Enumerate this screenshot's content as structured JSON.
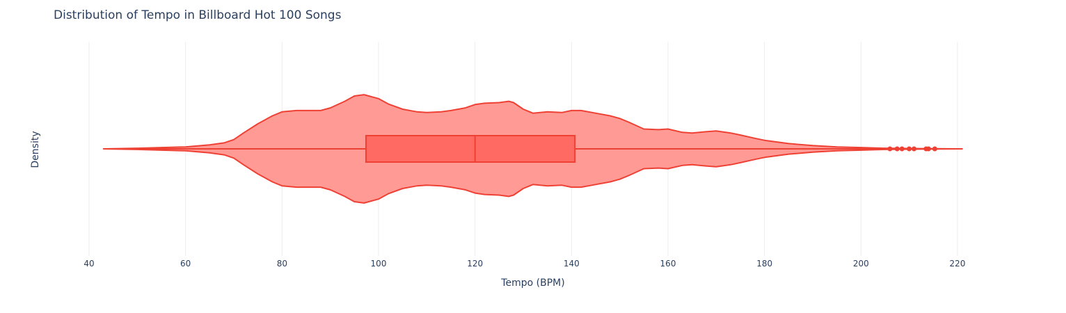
{
  "chart_data": {
    "type": "violin",
    "title": "Distribution of Tempo in Billboard Hot 100 Songs",
    "xlabel": "Tempo (BPM)",
    "ylabel": "Density",
    "xlim": [
      40,
      220
    ],
    "x_ticks": [
      40,
      60,
      80,
      100,
      120,
      140,
      160,
      180,
      200,
      220
    ],
    "grid": "vertical",
    "colors": {
      "fill": "#ff9a95",
      "line": "#ef4034",
      "box_fill": "#ff6b62",
      "grid": "#ebedf0"
    },
    "whisker_range": [
      43,
      221
    ],
    "box": {
      "q1": 97.4,
      "median": 120.0,
      "q3": 140.7
    },
    "outliers": [
      206,
      207.5,
      208.5,
      210,
      211,
      213.5,
      214,
      215.3
    ],
    "density": {
      "x": [
        43,
        50,
        60,
        65,
        68,
        70,
        72,
        75,
        78,
        80,
        83,
        85,
        88,
        90,
        93,
        95,
        97,
        100,
        102,
        105,
        108,
        110,
        113,
        115,
        118,
        120,
        122,
        125,
        127,
        128,
        130,
        132,
        135,
        138,
        140,
        142,
        145,
        148,
        150,
        152,
        155,
        158,
        160,
        163,
        165,
        168,
        170,
        173,
        175,
        178,
        180,
        185,
        190,
        195,
        200,
        205,
        210,
        215,
        221
      ],
      "y": [
        0,
        0.01,
        0.03,
        0.06,
        0.09,
        0.14,
        0.24,
        0.38,
        0.5,
        0.56,
        0.58,
        0.58,
        0.58,
        0.62,
        0.72,
        0.8,
        0.82,
        0.76,
        0.68,
        0.6,
        0.56,
        0.55,
        0.56,
        0.58,
        0.62,
        0.67,
        0.69,
        0.7,
        0.72,
        0.7,
        0.6,
        0.54,
        0.56,
        0.55,
        0.58,
        0.58,
        0.54,
        0.5,
        0.46,
        0.4,
        0.3,
        0.29,
        0.3,
        0.25,
        0.24,
        0.26,
        0.27,
        0.24,
        0.21,
        0.16,
        0.13,
        0.08,
        0.05,
        0.03,
        0.02,
        0.01,
        0.005,
        0.003,
        0
      ]
    }
  }
}
